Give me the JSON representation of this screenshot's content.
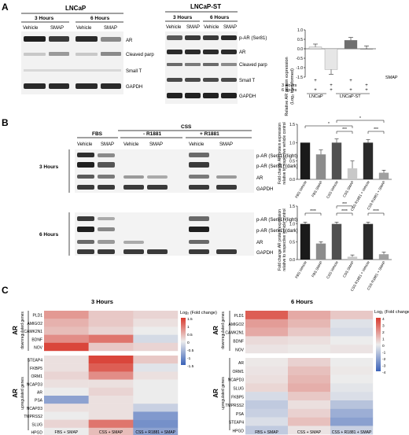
{
  "panels": {
    "A": {
      "letter": "A",
      "lncap": {
        "title": "LNCaP",
        "time_3": "3 Hours",
        "time_6": "6 Hours",
        "cond_vehicle": "Vehicle",
        "cond_smap": "SMAP",
        "rows": [
          "AR",
          "Cleaved parp",
          "Small T",
          "GAPDH"
        ]
      },
      "lncap_st": {
        "title": "LNCaP-ST",
        "time_3": "3 Hours",
        "time_6": "6 Hours",
        "cond_vehicle": "Vehicle",
        "cond_smap": "SMAP",
        "rows": [
          "p-AR (Ser81)",
          "AR",
          "Cleaved parp",
          "Small T",
          "GAPDH"
        ]
      },
      "bar_chart": {
        "ylabel_line1": "Relative AR protein expression",
        "ylabel_line2": "(Log₂ transformed)",
        "ticks": [
          "1.0",
          "0.5",
          "0.0",
          "-0.5",
          "-1.0",
          "-1.5"
        ],
        "row_3h": "3 Hours",
        "row_6h": "6 Hours",
        "row_smap": "SMAP",
        "plus": "+",
        "group_lncap": "LNCaP",
        "group_lncap_st": "LNCaP-ST"
      }
    },
    "B": {
      "letter": "B",
      "col_fbs": "FBS",
      "col_css": "CSS",
      "col_minus": "- R1881",
      "col_plus": "+ R1881",
      "cond_vehicle": "Vehicle",
      "cond_smap": "SMAP",
      "hours_3": "3 Hours",
      "hours_6": "6 Hours",
      "rows": [
        "p-AR (Ser81) (light)",
        "p-AR (Ser81) (dark)",
        "AR",
        "GAPDH"
      ],
      "chart_ylabel_line1": "Fold change AR protein expression",
      "chart_ylabel_line2": "relative to respective vehicle control",
      "chart_ticks": [
        "1.5",
        "1.0",
        "0.5",
        "0.0"
      ],
      "chart_categories": [
        "FBS Vehicle",
        "FBS SMAP",
        "CSS Vehicle",
        "CSS SMAP",
        "CSS R1881 + Vehicle",
        "CSS R1881 + SMAP"
      ],
      "sig_top": [
        "*",
        "*",
        "***",
        "***"
      ],
      "sig_bottom": [
        "****",
        "***",
        "****",
        "****"
      ]
    },
    "C": {
      "letter": "C",
      "title_3h": "3 Hours",
      "title_6h": "6 Hours",
      "group_label": "AR",
      "down_label": "downregulated genes",
      "up_label": "upregulated genes",
      "legend_title": "Log₂ (Fold change)",
      "legend_ticks_3h": [
        "1.5",
        "1",
        "0.5",
        "0",
        "-0.5",
        "-1",
        "-1.5"
      ],
      "legend_ticks_6h": [
        "4",
        "3",
        "2",
        "1",
        "0",
        "-1",
        "-2",
        "-3",
        "-4"
      ],
      "columns": [
        "FBS + SMAP",
        "CSS + SMAP",
        "CSS + R1881 + SMAP"
      ],
      "genes_3h_down": [
        "PLD1",
        "AMIGO2",
        "CAMK2N1",
        "BDNF",
        "NOV"
      ],
      "genes_3h_up": [
        "STEAP4",
        "FKBP5",
        "ORM1",
        "NCAPD3",
        "AR",
        "PSA",
        "NCAPD3",
        "TMPRSS2",
        "SLUG",
        "HPGD"
      ],
      "genes_6h_down": [
        "PLD1",
        "AMIGO2",
        "CAMK2N1",
        "BDNF",
        "NOV"
      ],
      "genes_6h_up": [
        "AR",
        "ORM1",
        "NCAPD3",
        "SLUG",
        "FKBP5",
        "TMPRSS2",
        "PSA",
        "STEAP4",
        "HPGD"
      ]
    }
  },
  "chart_data": [
    {
      "type": "bar",
      "ylabel": "Relative AR protein expression (Log₂ transformed)",
      "categories": [
        "LNCaP 3 Hours",
        "LNCaP 6 Hours",
        "LNCaP-ST 3 Hours",
        "LNCaP-ST 6 Hours"
      ],
      "values": [
        0.1,
        -1.1,
        0.45,
        0.0
      ],
      "errors": [
        0.15,
        0.25,
        0.15,
        0.15
      ],
      "colors": [
        "#e6e6e6",
        "#e6e6e6",
        "#6f6f6f",
        "#6f6f6f"
      ],
      "ylim": [
        -1.5,
        1.0
      ]
    },
    {
      "type": "bar",
      "title": "3 Hours",
      "ylabel": "Fold change AR protein expression relative to respective vehicle control",
      "categories": [
        "FBS Vehicle",
        "FBS SMAP",
        "CSS Vehicle",
        "CSS SMAP",
        "CSS R1881 + Vehicle",
        "CSS R1881 + SMAP"
      ],
      "values": [
        1.0,
        0.68,
        1.0,
        0.3,
        1.0,
        0.18
      ],
      "errors": [
        0.0,
        0.12,
        0.1,
        0.2,
        0.08,
        0.07
      ],
      "colors": [
        "#1a1a1a",
        "#8c8c8c",
        "#505050",
        "#c8c8c8",
        "#2a2a2a",
        "#a0a0a0"
      ],
      "ylim": [
        0,
        1.5
      ]
    },
    {
      "type": "bar",
      "title": "6 Hours",
      "ylabel": "Fold change AR protein expression relative to respective vehicle control",
      "categories": [
        "FBS Vehicle",
        "FBS SMAP",
        "CSS Vehicle",
        "CSS SMAP",
        "CSS R1881 + Vehicle",
        "CSS R1881 + SMAP"
      ],
      "values": [
        1.0,
        0.45,
        1.0,
        0.08,
        1.0,
        0.15
      ],
      "errors": [
        0.05,
        0.05,
        0.05,
        0.05,
        0.05,
        0.06
      ],
      "colors": [
        "#1a1a1a",
        "#8c8c8c",
        "#505050",
        "#c8c8c8",
        "#2a2a2a",
        "#a0a0a0"
      ],
      "ylim": [
        0,
        1.5
      ]
    },
    {
      "type": "heatmap",
      "title": "3 Hours",
      "columns": [
        "FBS + SMAP",
        "CSS + SMAP",
        "CSS + R1881 + SMAP"
      ],
      "rows": [
        "PLD1",
        "AMIGO2",
        "CAMK2N1",
        "BDNF",
        "NOV",
        "STEAP4",
        "FKBP5",
        "ORM1",
        "NCAPD3",
        "AR",
        "PSA",
        "NCAPD3",
        "TMPRSS2",
        "SLUG",
        "HPGD"
      ],
      "values": [
        [
          0.7,
          0.3,
          0.2
        ],
        [
          0.5,
          0.3,
          0.1
        ],
        [
          0.4,
          0.2,
          0.0
        ],
        [
          0.8,
          1.0,
          -0.2
        ],
        [
          1.4,
          0.3,
          0.2
        ],
        [
          0.1,
          1.4,
          0.3
        ],
        [
          0.1,
          1.2,
          -0.1
        ],
        [
          0.2,
          0.8,
          0.1
        ],
        [
          0.1,
          0.1,
          0.0
        ],
        [
          0.0,
          0.2,
          0.0
        ],
        [
          -0.8,
          0.1,
          0.0
        ],
        [
          0.1,
          0.1,
          -0.3
        ],
        [
          0.0,
          0.1,
          -0.9
        ],
        [
          0.2,
          1.0,
          -1.0
        ],
        [
          0.0,
          0.4,
          -0.8
        ]
      ],
      "vmin": -1.5,
      "vmax": 1.5
    },
    {
      "type": "heatmap",
      "title": "6 Hours",
      "columns": [
        "FBS + SMAP",
        "CSS + SMAP",
        "CSS + R1881 + SMAP"
      ],
      "rows": [
        "PLD1",
        "AMIGO2",
        "CAMK2N1",
        "BDNF",
        "NOV",
        "AR",
        "ORM1",
        "NCAPD3",
        "SLUG",
        "FKBP5",
        "TMPRSS2",
        "PSA",
        "STEAP4",
        "HPGD"
      ],
      "values": [
        [
          3.2,
          1.5,
          0.8
        ],
        [
          1.8,
          1.2,
          -0.3
        ],
        [
          1.5,
          0.8,
          -0.5
        ],
        [
          0.4,
          0.3,
          0.0
        ],
        [
          0.2,
          0.1,
          0.2
        ],
        [
          0.1,
          0.6,
          0.0
        ],
        [
          0.2,
          1.0,
          0.1
        ],
        [
          0.3,
          1.2,
          0.0
        ],
        [
          0.5,
          1.4,
          -0.2
        ],
        [
          -0.5,
          0.8,
          -0.4
        ],
        [
          -1.0,
          0.3,
          -1.2
        ],
        [
          -0.8,
          0.6,
          -1.8
        ],
        [
          -0.4,
          1.0,
          -2.2
        ],
        [
          -1.0,
          0.2,
          -0.8
        ]
      ],
      "vmin": -4,
      "vmax": 4
    }
  ]
}
